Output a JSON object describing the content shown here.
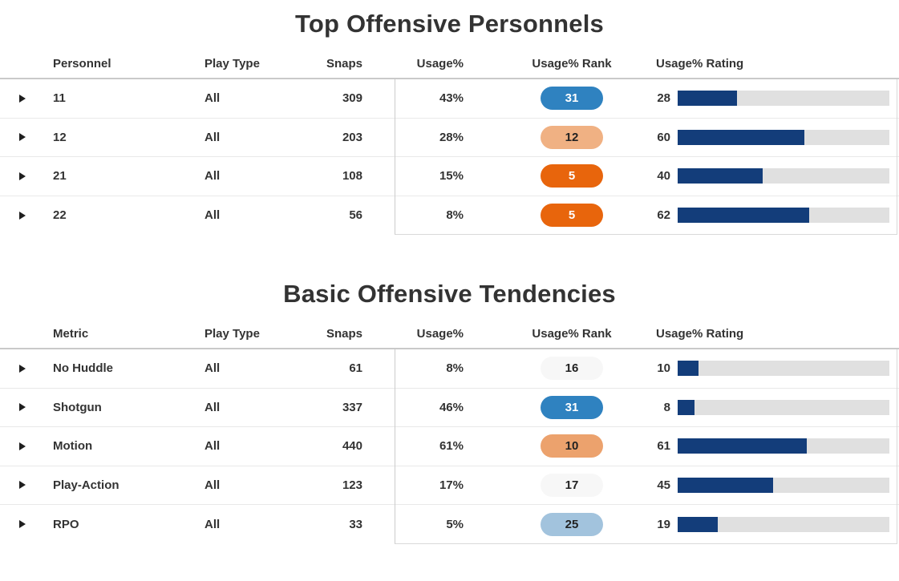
{
  "colors": {
    "text": "#333333",
    "rating_bar_fill": "#133d7a",
    "rating_bar_track": "#e0e0e0",
    "header_border": "#c9c9c9",
    "row_border": "#e9e9e9"
  },
  "tables": [
    {
      "title": "Top Offensive Personnels",
      "columns": [
        "Personnel",
        "Play Type",
        "Snaps",
        "Usage%",
        "Usage% Rank",
        "Usage% Rating"
      ],
      "rows": [
        {
          "name": "11",
          "play_type": "All",
          "snaps": "309",
          "usage": "43%",
          "rank": "31",
          "rank_bg": "#2f82c0",
          "rank_fg": "#ffffff",
          "rating": 28
        },
        {
          "name": "12",
          "play_type": "All",
          "snaps": "203",
          "usage": "28%",
          "rank": "12",
          "rank_bg": "#f0b183",
          "rank_fg": "#222222",
          "rating": 60
        },
        {
          "name": "21",
          "play_type": "All",
          "snaps": "108",
          "usage": "15%",
          "rank": "5",
          "rank_bg": "#e8650c",
          "rank_fg": "#ffffff",
          "rating": 40
        },
        {
          "name": "22",
          "play_type": "All",
          "snaps": "56",
          "usage": "8%",
          "rank": "5",
          "rank_bg": "#e8650c",
          "rank_fg": "#ffffff",
          "rating": 62
        }
      ]
    },
    {
      "title": "Basic Offensive Tendencies",
      "columns": [
        "Metric",
        "Play Type",
        "Snaps",
        "Usage%",
        "Usage% Rank",
        "Usage% Rating"
      ],
      "rows": [
        {
          "name": "No Huddle",
          "play_type": "All",
          "snaps": "61",
          "usage": "8%",
          "rank": "16",
          "rank_bg": "#f7f7f7",
          "rank_fg": "#222222",
          "rating": 10
        },
        {
          "name": "Shotgun",
          "play_type": "All",
          "snaps": "337",
          "usage": "46%",
          "rank": "31",
          "rank_bg": "#2f82c0",
          "rank_fg": "#ffffff",
          "rating": 8
        },
        {
          "name": "Motion",
          "play_type": "All",
          "snaps": "440",
          "usage": "61%",
          "rank": "10",
          "rank_bg": "#eca26d",
          "rank_fg": "#222222",
          "rating": 61
        },
        {
          "name": "Play-Action",
          "play_type": "All",
          "snaps": "123",
          "usage": "17%",
          "rank": "17",
          "rank_bg": "#f7f7f7",
          "rank_fg": "#222222",
          "rating": 45
        },
        {
          "name": "RPO",
          "play_type": "All",
          "snaps": "33",
          "usage": "5%",
          "rank": "25",
          "rank_bg": "#a2c3dd",
          "rank_fg": "#222222",
          "rating": 19
        }
      ]
    }
  ]
}
